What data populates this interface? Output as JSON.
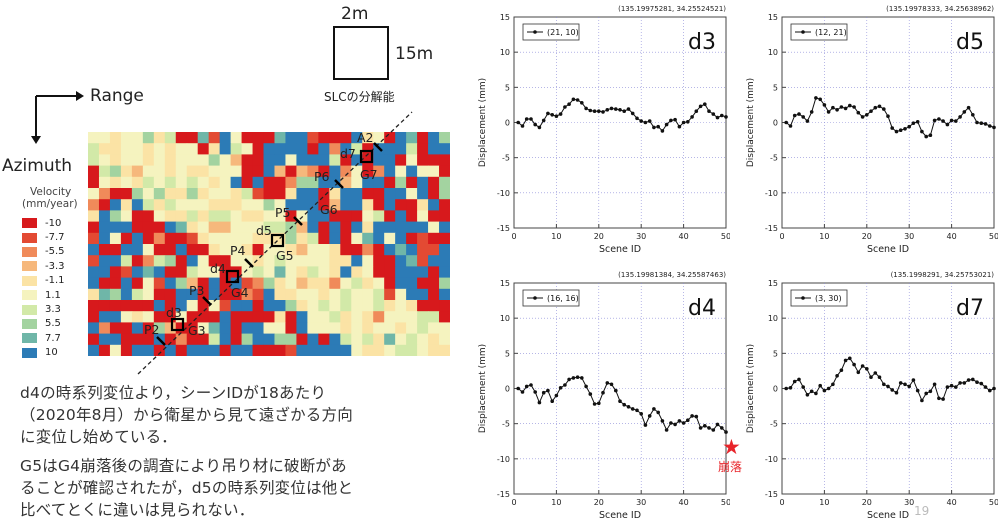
{
  "header": {
    "pixel_width": "2m",
    "pixel_height": "15m",
    "slc_caption": "SLCの分解能"
  },
  "axes_labels": {
    "range": "Range",
    "azimuth": "Azimuth"
  },
  "legend": {
    "title_line1": "Velocity",
    "title_line2": "(mm/year)",
    "entries": [
      {
        "label": "-10",
        "color": "#d7191c"
      },
      {
        "label": "-7.7",
        "color": "#e34a33"
      },
      {
        "label": "-5.5",
        "color": "#f08a5a"
      },
      {
        "label": "-3.3",
        "color": "#f6b87c"
      },
      {
        "label": "-1.1",
        "color": "#fbe3a5"
      },
      {
        "label": "1.1",
        "color": "#f5f3bf"
      },
      {
        "label": "3.3",
        "color": "#d2e9a8"
      },
      {
        "label": "5.5",
        "color": "#a3d3a0"
      },
      {
        "label": "7.7",
        "color": "#6fb6a8"
      },
      {
        "label": "10",
        "color": "#2c7bb6"
      }
    ]
  },
  "map_labels": [
    "A2",
    "d7",
    "G7",
    "P6",
    "G6",
    "P5",
    "d5",
    "G5",
    "P4",
    "d4",
    "G4",
    "P3",
    "d3",
    "G3",
    "P2"
  ],
  "description": {
    "para1": [
      "d4の時系列変位より，シーンIDが18あたり",
      "（2020年8月）から衛星から見て遠ざかる方向",
      "に変位し始めている．"
    ],
    "para2": [
      "G5はG4崩落後の調査により吊り材に破断があ",
      "ることが確認されたが，d5の時系列変位は他と",
      "比べてとくに違いは見られない．"
    ]
  },
  "collapse_label": "崩落",
  "star_icon": "star-icon",
  "slide_number": "19",
  "chart_data": [
    {
      "type": "line",
      "id": "d3",
      "panel_label": "d3",
      "coordinates": "(135.19975281, 34.25524521)",
      "series": [
        {
          "name": "(21, 10)",
          "values": [
            0,
            -0.5,
            0.5,
            0.5,
            -0.3,
            -0.7,
            0.3,
            1.3,
            1.1,
            0.9,
            1.2,
            2.2,
            2.6,
            3.3,
            3.2,
            2.8,
            2.0,
            1.7,
            1.6,
            1.6,
            1.5,
            1.8,
            2.0,
            1.9,
            1.8,
            1.6,
            1.9,
            1.3,
            0.6,
            0.2,
            0.0,
            0.2,
            -0.7,
            -0.6,
            -1.2,
            -0.3,
            0.3,
            0.4,
            -0.6,
            0.0,
            0.1,
            0.8,
            1.6,
            2.3,
            2.6,
            1.6,
            1.2,
            0.7,
            1.0,
            0.8
          ]
        }
      ],
      "x": [
        1,
        2,
        3,
        4,
        5,
        6,
        7,
        8,
        9,
        10,
        11,
        12,
        13,
        14,
        15,
        16,
        17,
        18,
        19,
        20,
        21,
        22,
        23,
        24,
        25,
        26,
        27,
        28,
        29,
        30,
        31,
        32,
        33,
        34,
        35,
        36,
        37,
        38,
        39,
        40,
        41,
        42,
        43,
        44,
        45,
        46,
        47,
        48,
        49,
        50
      ],
      "xlabel": "Scene ID",
      "ylabel": "Displacement (mm)",
      "xlim": [
        0,
        50
      ],
      "ylim": [
        -15,
        15
      ],
      "xticks": [
        0,
        10,
        20,
        30,
        40,
        50
      ],
      "yticks": [
        15,
        10,
        5,
        0,
        -5,
        -10,
        -15
      ],
      "grid": true,
      "legend_position": "top-left"
    },
    {
      "type": "line",
      "id": "d5",
      "panel_label": "d5",
      "coordinates": "(135.19978333, 34.25638962)",
      "series": [
        {
          "name": "(12, 21)",
          "values": [
            0,
            -0.5,
            1.0,
            1.2,
            0.8,
            0.2,
            1.5,
            3.5,
            3.3,
            2.5,
            1.5,
            2.1,
            1.8,
            2.2,
            2.0,
            2.4,
            2.2,
            1.4,
            0.8,
            1.1,
            1.6,
            2.1,
            2.3,
            1.9,
            0.9,
            -0.8,
            -1.3,
            -1.1,
            -0.9,
            -0.6,
            -0.1,
            0.1,
            -1.3,
            -2.0,
            -1.8,
            0.3,
            0.5,
            0.2,
            -0.3,
            0.3,
            0.2,
            0.8,
            1.5,
            2.1,
            1.1,
            0.0,
            -0.1,
            -0.2,
            -0.5,
            -0.7
          ]
        }
      ],
      "x": [
        1,
        2,
        3,
        4,
        5,
        6,
        7,
        8,
        9,
        10,
        11,
        12,
        13,
        14,
        15,
        16,
        17,
        18,
        19,
        20,
        21,
        22,
        23,
        24,
        25,
        26,
        27,
        28,
        29,
        30,
        31,
        32,
        33,
        34,
        35,
        36,
        37,
        38,
        39,
        40,
        41,
        42,
        43,
        44,
        45,
        46,
        47,
        48,
        49,
        50
      ],
      "xlabel": "Scene ID",
      "ylabel": "Displacement (mm)",
      "xlim": [
        0,
        50
      ],
      "ylim": [
        -15,
        15
      ],
      "xticks": [
        0,
        10,
        20,
        30,
        40,
        50
      ],
      "yticks": [
        15,
        10,
        5,
        0,
        -5,
        -10,
        -15
      ],
      "grid": true,
      "legend_position": "top-left"
    },
    {
      "type": "line",
      "id": "d4",
      "panel_label": "d4",
      "coordinates": "(135.19981384, 34.25587463)",
      "series": [
        {
          "name": "(16, 16)",
          "values": [
            0,
            -0.5,
            0.3,
            0.5,
            -0.5,
            -2.0,
            -0.6,
            -0.3,
            -1.8,
            -1.0,
            0.1,
            0.5,
            1.3,
            1.5,
            1.6,
            1.5,
            0.3,
            -0.8,
            -2.2,
            -2.1,
            -0.6,
            0.8,
            0.6,
            -0.3,
            -1.8,
            -2.3,
            -2.6,
            -2.9,
            -3.1,
            -3.6,
            -5.2,
            -3.9,
            -2.9,
            -3.4,
            -4.6,
            -5.9,
            -4.9,
            -5.1,
            -4.6,
            -4.9,
            -4.5,
            -3.9,
            -4.0,
            -5.6,
            -5.3,
            -5.6,
            -5.9,
            -5.1,
            -5.6,
            -6.2
          ]
        }
      ],
      "x": [
        1,
        2,
        3,
        4,
        5,
        6,
        7,
        8,
        9,
        10,
        11,
        12,
        13,
        14,
        15,
        16,
        17,
        18,
        19,
        20,
        21,
        22,
        23,
        24,
        25,
        26,
        27,
        28,
        29,
        30,
        31,
        32,
        33,
        34,
        35,
        36,
        37,
        38,
        39,
        40,
        41,
        42,
        43,
        44,
        45,
        46,
        47,
        48,
        49,
        50
      ],
      "xlabel": "Scene ID",
      "ylabel": "Displacement (mm)",
      "xlim": [
        0,
        50
      ],
      "ylim": [
        -15,
        15
      ],
      "xticks": [
        0,
        10,
        20,
        30,
        40,
        50
      ],
      "yticks": [
        15,
        10,
        5,
        0,
        -5,
        -10,
        -15
      ],
      "grid": true,
      "legend_position": "top-left"
    },
    {
      "type": "line",
      "id": "d7",
      "panel_label": "d7",
      "coordinates": "(135.1998291, 34.25753021)",
      "series": [
        {
          "name": "(3, 30)",
          "values": [
            0,
            0.1,
            1.0,
            1.3,
            0.2,
            -0.9,
            -0.4,
            -0.7,
            0.4,
            -0.3,
            0.0,
            0.6,
            1.8,
            2.6,
            4.0,
            4.3,
            3.4,
            2.3,
            3.2,
            2.8,
            1.6,
            2.2,
            1.6,
            0.6,
            0.3,
            -0.2,
            -0.6,
            0.8,
            0.6,
            0.3,
            1.2,
            -0.3,
            -1.7,
            -0.7,
            -0.4,
            0.6,
            -1.4,
            -1.5,
            0.2,
            0.4,
            0.2,
            0.8,
            0.8,
            1.2,
            1.3,
            0.9,
            0.7,
            0.2,
            -0.3,
            0.0
          ]
        }
      ],
      "x": [
        1,
        2,
        3,
        4,
        5,
        6,
        7,
        8,
        9,
        10,
        11,
        12,
        13,
        14,
        15,
        16,
        17,
        18,
        19,
        20,
        21,
        22,
        23,
        24,
        25,
        26,
        27,
        28,
        29,
        30,
        31,
        32,
        33,
        34,
        35,
        36,
        37,
        38,
        39,
        40,
        41,
        42,
        43,
        44,
        45,
        46,
        47,
        48,
        49,
        50
      ],
      "xlabel": "Scene ID",
      "ylabel": "Displacement (mm)",
      "xlim": [
        0,
        50
      ],
      "ylim": [
        -15,
        15
      ],
      "xticks": [
        0,
        10,
        20,
        30,
        40,
        50
      ],
      "yticks": [
        15,
        10,
        5,
        0,
        -5,
        -10,
        -15
      ],
      "grid": true,
      "legend_position": "top-left"
    }
  ]
}
